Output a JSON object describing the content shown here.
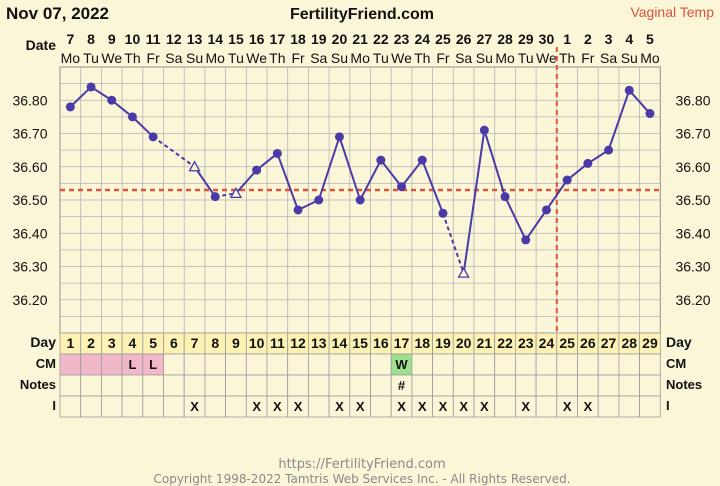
{
  "header": {
    "date": "Nov 07, 2022",
    "site": "FertilityFriend.com",
    "temp_type": "Vaginal Temp"
  },
  "row_labels": {
    "date": "Date",
    "day": "Day",
    "cm": "CM",
    "notes": "Notes",
    "intercourse": "I"
  },
  "footer": {
    "url": "https://FertilityFriend.com",
    "copyright": "Copyright 1998-2022 Tamtris Web Services Inc. - All Rights Reserved."
  },
  "colors": {
    "background": "#fcf6d8",
    "grid": "#b3b3b3",
    "line": "#4a3aa8",
    "coverline": "#e0533a",
    "menstruation": "#f0b8c8",
    "eggwhite": "#9fe08f"
  },
  "chart_data": {
    "type": "line",
    "ylim": [
      36.1,
      36.9
    ],
    "yticks": [
      "36.80",
      "36.70",
      "36.60",
      "36.50",
      "36.40",
      "36.30",
      "36.20"
    ],
    "grid": true,
    "coverline": 36.53,
    "ovulation_day": 24,
    "dates": [
      "7",
      "8",
      "9",
      "10",
      "11",
      "12",
      "13",
      "14",
      "15",
      "16",
      "17",
      "18",
      "19",
      "20",
      "21",
      "22",
      "23",
      "24",
      "25",
      "26",
      "27",
      "28",
      "29",
      "30",
      "1",
      "2",
      "3",
      "4",
      "5"
    ],
    "weekdays": [
      "Mo",
      "Tu",
      "We",
      "Th",
      "Fr",
      "Sa",
      "Su",
      "Mo",
      "Tu",
      "We",
      "Th",
      "Fr",
      "Sa",
      "Su",
      "Mo",
      "Tu",
      "We",
      "Th",
      "Fr",
      "Sa",
      "Su",
      "Mo",
      "Tu",
      "We",
      "Th",
      "Fr",
      "Sa",
      "Su",
      "Mo"
    ],
    "days": [
      "1",
      "2",
      "3",
      "4",
      "5",
      "6",
      "7",
      "8",
      "9",
      "10",
      "11",
      "12",
      "13",
      "14",
      "15",
      "16",
      "17",
      "18",
      "19",
      "20",
      "21",
      "22",
      "23",
      "24",
      "25",
      "26",
      "27",
      "28",
      "29"
    ],
    "temps": [
      36.78,
      36.84,
      36.8,
      36.75,
      36.69,
      null,
      36.6,
      36.51,
      36.52,
      36.59,
      36.64,
      36.47,
      36.5,
      36.69,
      36.5,
      36.62,
      36.54,
      36.62,
      36.46,
      36.28,
      36.71,
      36.51,
      36.38,
      36.47,
      36.56,
      36.61,
      36.65,
      36.83,
      36.76
    ],
    "discarded_days": [
      7,
      9,
      20
    ],
    "menstruation_days": [
      1,
      2,
      3,
      4,
      5
    ],
    "cm": [
      "",
      "",
      "",
      "L",
      "L",
      "",
      "",
      "",
      "",
      "",
      "",
      "",
      "",
      "",
      "",
      "",
      "W",
      "",
      "",
      "",
      "",
      "",
      "",
      "",
      "",
      "",
      "",
      "",
      ""
    ],
    "notes": [
      "",
      "",
      "",
      "",
      "",
      "",
      "",
      "",
      "",
      "",
      "",
      "",
      "",
      "",
      "",
      "",
      "#",
      "",
      "",
      "",
      "",
      "",
      "",
      "",
      "",
      "",
      "",
      "",
      ""
    ],
    "intercourse": [
      "",
      "",
      "",
      "",
      "",
      "",
      "X",
      "",
      "",
      "X",
      "X",
      "X",
      "",
      "X",
      "X",
      "",
      "X",
      "X",
      "X",
      "X",
      "X",
      "",
      "X",
      "",
      "X",
      "X",
      "",
      "",
      ""
    ]
  }
}
